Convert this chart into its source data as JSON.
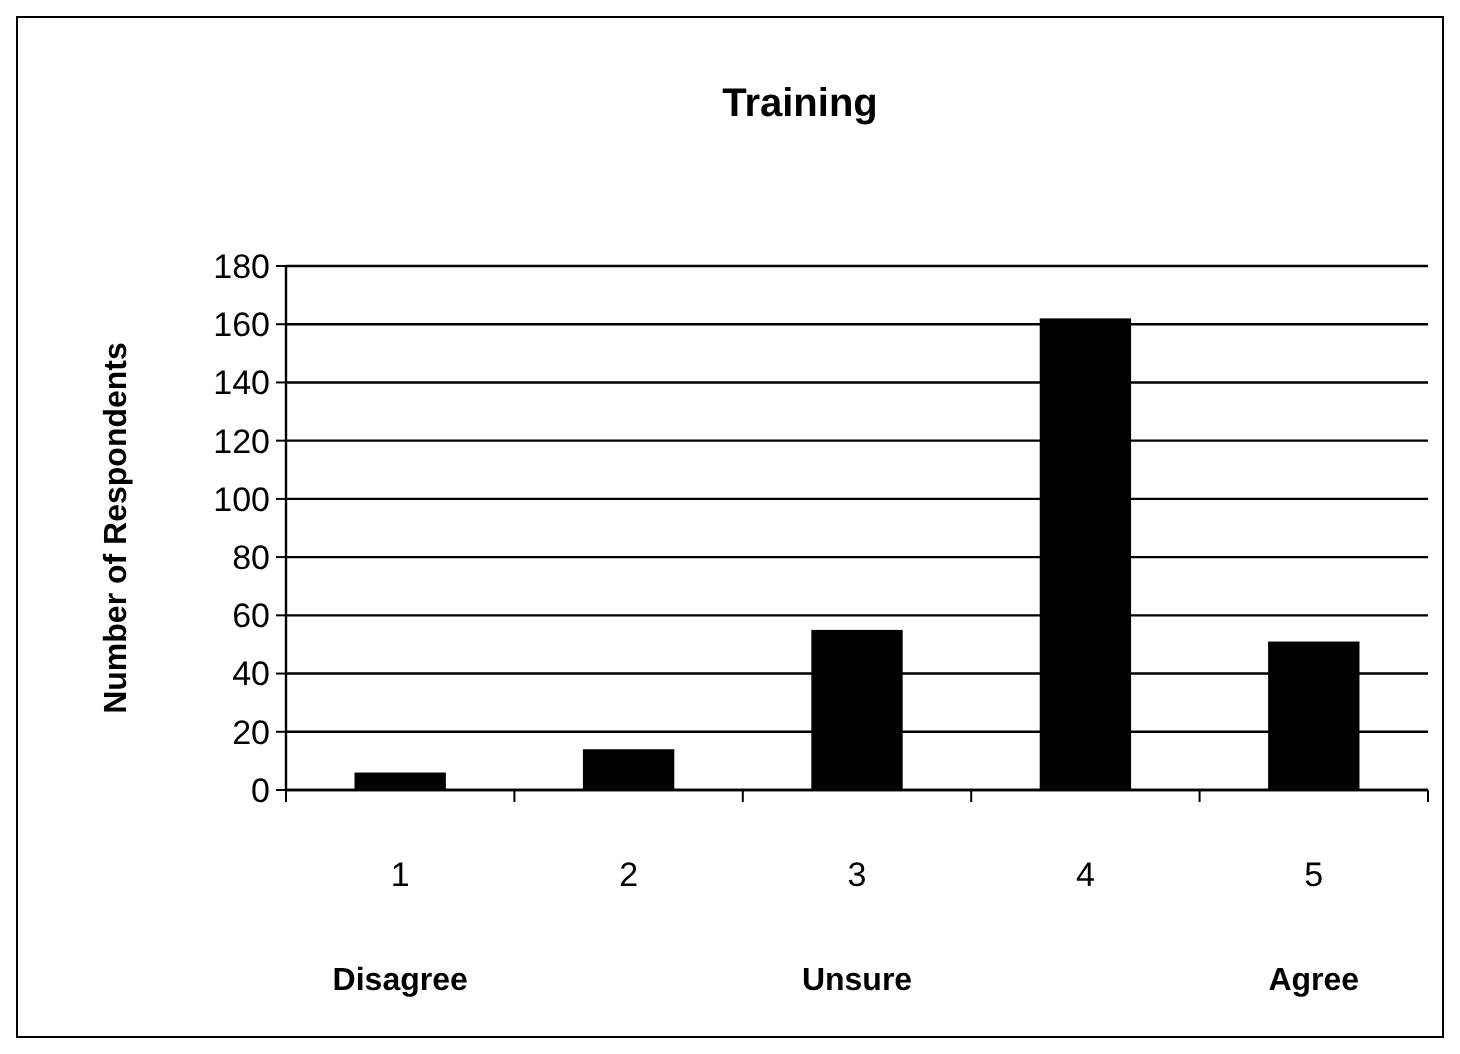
{
  "chart_data": {
    "type": "bar",
    "title": "Training",
    "ylabel": "Number of Respondents",
    "categories": [
      "1",
      "2",
      "3",
      "4",
      "5"
    ],
    "values": [
      6,
      14,
      55,
      162,
      51
    ],
    "color": "#000000",
    "ylim": [
      0,
      180
    ],
    "yticks": [
      0,
      20,
      40,
      60,
      80,
      100,
      120,
      140,
      160,
      180
    ],
    "grid": "y",
    "annotations": [
      "Disagree",
      "Unsure",
      "Agree"
    ]
  }
}
